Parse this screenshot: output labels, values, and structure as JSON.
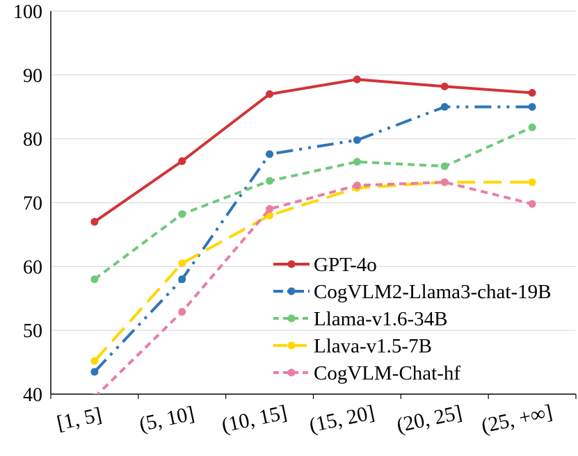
{
  "chart_data": {
    "type": "line",
    "title": "",
    "xlabel": "",
    "ylabel": "",
    "ylim": [
      40,
      100
    ],
    "yticks": [
      40,
      50,
      60,
      70,
      80,
      90,
      100
    ],
    "ytick_labels": [
      "40",
      "50",
      "60",
      "70",
      "80",
      "90",
      "100"
    ],
    "categories": [
      "[1, 5]",
      "(5, 10]",
      "(10, 15]",
      "(15, 20]",
      "(20, 25]",
      "(25, +∞]"
    ],
    "grid": "horizontal",
    "legend_position": "bottom-right",
    "series": [
      {
        "name": "GPT-4o",
        "color": "#d13438",
        "dash": "solid",
        "values": [
          67.0,
          76.5,
          87.0,
          89.3,
          88.2,
          87.2
        ]
      },
      {
        "name": "CogVLM2-Llama3-chat-19B",
        "color": "#2e75b6",
        "dash": "dashdotdot",
        "values": [
          43.5,
          58.0,
          77.6,
          79.8,
          85.0,
          85.0
        ]
      },
      {
        "name": "Llama-v1.6-34B",
        "color": "#70c97b",
        "dash": "dash",
        "values": [
          58.0,
          68.2,
          73.4,
          76.4,
          75.7,
          81.8
        ]
      },
      {
        "name": "Llava-v1.5-7B",
        "color": "#ffd700",
        "dash": "longdash",
        "values": [
          45.2,
          60.5,
          68.0,
          72.3,
          73.2,
          73.2
        ]
      },
      {
        "name": "CogVLM-Chat-hf",
        "color": "#e87fa0",
        "dash": "dash",
        "values": [
          39.5,
          52.9,
          69.0,
          72.7,
          73.2,
          69.8
        ]
      }
    ]
  }
}
